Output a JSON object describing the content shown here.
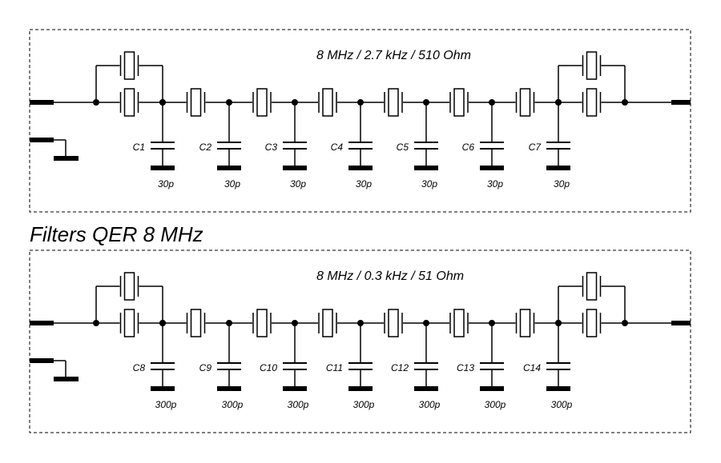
{
  "title": "Filters QER 8 MHz",
  "panels": [
    {
      "spec": "8 MHz / 2.7 kHz / 510 Ohm",
      "capacitors": [
        {
          "name": "C1",
          "value": "30p"
        },
        {
          "name": "C2",
          "value": "30p"
        },
        {
          "name": "C3",
          "value": "30p"
        },
        {
          "name": "C4",
          "value": "30p"
        },
        {
          "name": "C5",
          "value": "30p"
        },
        {
          "name": "C6",
          "value": "30p"
        },
        {
          "name": "C7",
          "value": "30p"
        }
      ]
    },
    {
      "spec": "8 MHz / 0.3 kHz / 51 Ohm",
      "capacitors": [
        {
          "name": "C8",
          "value": "300p"
        },
        {
          "name": "C9",
          "value": "300p"
        },
        {
          "name": "C10",
          "value": "300p"
        },
        {
          "name": "C11",
          "value": "300p"
        },
        {
          "name": "C12",
          "value": "300p"
        },
        {
          "name": "C13",
          "value": "300p"
        },
        {
          "name": "C14",
          "value": "300p"
        }
      ]
    }
  ]
}
